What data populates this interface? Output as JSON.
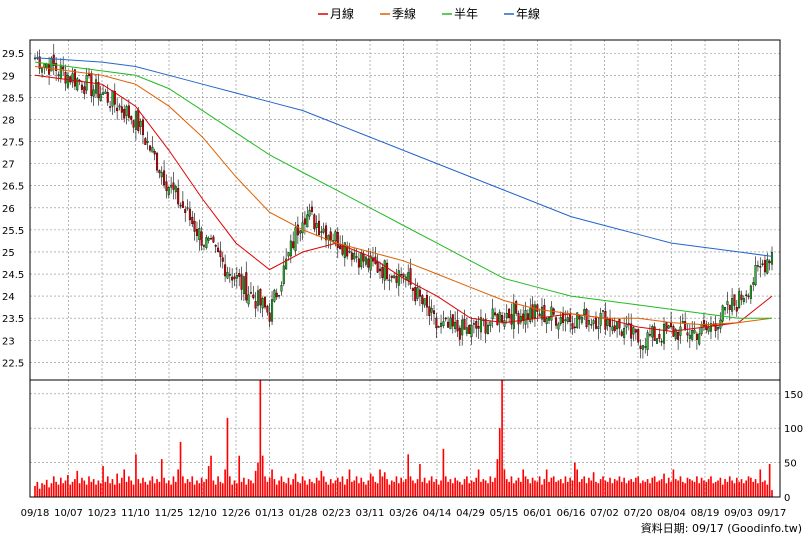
{
  "chart_data": {
    "type": "candlestick",
    "legend": [
      {
        "name": "月線",
        "color": "#e00000"
      },
      {
        "name": "季線",
        "color": "#e06000"
      },
      {
        "name": "半年",
        "color": "#22bb22"
      },
      {
        "name": "年線",
        "color": "#2266cc"
      }
    ],
    "colors": {
      "up": "#22bb22",
      "down": "#e00000",
      "volume": "#ff0000",
      "grid": "#888888"
    },
    "price_axis": {
      "min": 22.1,
      "max": 29.8,
      "ticks": [
        "22.5",
        "23",
        "23.5",
        "24",
        "24.5",
        "25",
        "25.5",
        "26",
        "26.5",
        "27",
        "27.5",
        "28",
        "28.5",
        "29",
        "29.5"
      ]
    },
    "volume_axis": {
      "min": 0,
      "max": 170,
      "ticks": [
        "0",
        "50",
        "100",
        "150"
      ]
    },
    "x_labels": [
      "09/18",
      "10/07",
      "10/23",
      "11/10",
      "11/25",
      "12/10",
      "12/26",
      "01/13",
      "01/28",
      "02/23",
      "03/11",
      "03/26",
      "04/14",
      "04/29",
      "05/15",
      "06/01",
      "06/16",
      "07/02",
      "07/20",
      "08/04",
      "08/19",
      "09/03",
      "09/17"
    ],
    "key_points": [
      {
        "date": "09/18",
        "close": 29.4
      },
      {
        "date": "10/07",
        "close": 29.0
      },
      {
        "date": "10/23",
        "close": 28.6
      },
      {
        "date": "11/10",
        "close": 28.0
      },
      {
        "date": "11/25",
        "close": 26.5
      },
      {
        "date": "12/10",
        "close": 25.3
      },
      {
        "date": "12/26",
        "close": 24.4
      },
      {
        "date": "01/13",
        "close": 23.6
      },
      {
        "date": "01/28",
        "close": 25.9
      },
      {
        "date": "02/23",
        "close": 25.3
      },
      {
        "date": "03/11",
        "close": 24.7
      },
      {
        "date": "03/26",
        "close": 24.5
      },
      {
        "date": "04/14",
        "close": 23.3
      },
      {
        "date": "04/29",
        "close": 23.2
      },
      {
        "date": "05/15",
        "close": 23.6
      },
      {
        "date": "06/01",
        "close": 23.6
      },
      {
        "date": "06/16",
        "close": 23.5
      },
      {
        "date": "07/02",
        "close": 23.5
      },
      {
        "date": "07/20",
        "close": 23.0
      },
      {
        "date": "08/04",
        "close": 23.2
      },
      {
        "date": "08/19",
        "close": 23.2
      },
      {
        "date": "09/03",
        "close": 23.9
      },
      {
        "date": "09/17",
        "close": 25.0
      }
    ],
    "moving_averages": {
      "月線": [
        29.0,
        28.9,
        28.8,
        28.3,
        27.3,
        26.2,
        25.2,
        24.6,
        25.0,
        25.2,
        24.9,
        24.4,
        24.0,
        23.5,
        23.4,
        23.5,
        23.6,
        23.5,
        23.3,
        23.2,
        23.3,
        23.4,
        24.0
      ],
      "季線": [
        29.2,
        29.1,
        29.0,
        28.8,
        28.3,
        27.6,
        26.7,
        25.9,
        25.5,
        25.2,
        25.0,
        24.8,
        24.5,
        24.2,
        23.9,
        23.7,
        23.6,
        23.5,
        23.5,
        23.4,
        23.35,
        23.4,
        23.5
      ],
      "半年": [
        29.3,
        29.2,
        29.1,
        29.0,
        28.7,
        28.2,
        27.7,
        27.2,
        26.8,
        26.4,
        26.0,
        25.6,
        25.2,
        24.8,
        24.4,
        24.2,
        24.0,
        23.9,
        23.8,
        23.7,
        23.6,
        23.5,
        23.5
      ],
      "年線": [
        29.4,
        29.35,
        29.3,
        29.2,
        29.0,
        28.8,
        28.6,
        28.4,
        28.2,
        27.9,
        27.6,
        27.3,
        27.0,
        26.7,
        26.4,
        26.1,
        25.8,
        25.6,
        25.4,
        25.2,
        25.1,
        25.0,
        24.9
      ]
    },
    "volume_peaks": [
      {
        "date": "01/13",
        "value": 170
      },
      {
        "date": "05/15",
        "value": 170
      },
      {
        "date": "12/26",
        "value": 115
      },
      {
        "date": "05/15",
        "value": 100
      }
    ],
    "volume_series": [
      16,
      22,
      12,
      20,
      18,
      25,
      14,
      20,
      30,
      22,
      18,
      28,
      20,
      24,
      32,
      18,
      22,
      26,
      38,
      20,
      28,
      24,
      18,
      30,
      22,
      26,
      18,
      24,
      20,
      45,
      22,
      30,
      20,
      26,
      18,
      34,
      20,
      28,
      40,
      22,
      30,
      24,
      18,
      62,
      26,
      20,
      28,
      22,
      18,
      24,
      30,
      20,
      26,
      22,
      55,
      28,
      20,
      24,
      18,
      30,
      22,
      40,
      80,
      30,
      20,
      26,
      22,
      30,
      18,
      24,
      20,
      28,
      22,
      26,
      45,
      60,
      24,
      18,
      30,
      22,
      20,
      40,
      115,
      30,
      18,
      24,
      20,
      60,
      22,
      28,
      18,
      26,
      24,
      20,
      38,
      50,
      170,
      60,
      30,
      22,
      28,
      40,
      26,
      18,
      24,
      30,
      22,
      20,
      28,
      18,
      26,
      34,
      22,
      20,
      30,
      24,
      18,
      26,
      22,
      20,
      28,
      24,
      38,
      30,
      22,
      18,
      26,
      20,
      24,
      28,
      22,
      30,
      18,
      26,
      40,
      22,
      24,
      30,
      20,
      28,
      22,
      18,
      24,
      34,
      30,
      22,
      20,
      40,
      30,
      36,
      26,
      18,
      24,
      22,
      30,
      20,
      28,
      22,
      26,
      62,
      30,
      24,
      20,
      26,
      48,
      22,
      28,
      20,
      24,
      30,
      22,
      26,
      18,
      24,
      70,
      30,
      22,
      26,
      20,
      28,
      24,
      22,
      18,
      26,
      30,
      20,
      24,
      22,
      28,
      40,
      22,
      26,
      24,
      20,
      30,
      22,
      28,
      55,
      100,
      170,
      40,
      26,
      22,
      30,
      20,
      24,
      28,
      22,
      40,
      30,
      26,
      20,
      28,
      24,
      22,
      30,
      18,
      26,
      40,
      22,
      28,
      30,
      22,
      24,
      26,
      20,
      30,
      22,
      28,
      24,
      50,
      40,
      22,
      26,
      30,
      20,
      28,
      24,
      36,
      22,
      20,
      26,
      30,
      24,
      22,
      28,
      20,
      26,
      24,
      30,
      22,
      28,
      20,
      24,
      26,
      22,
      28,
      30,
      20,
      24,
      22,
      26,
      20,
      28,
      30,
      22,
      24,
      26,
      34,
      20,
      28,
      22,
      40,
      26,
      24,
      30,
      22,
      20,
      28,
      26,
      24,
      22,
      30,
      20,
      28,
      24,
      22,
      26,
      30,
      20,
      22,
      24,
      28,
      18,
      26,
      22,
      30,
      24,
      20,
      28,
      22,
      26,
      20,
      24,
      30,
      28,
      22,
      26,
      20,
      40,
      22,
      24,
      18,
      48,
      10
    ]
  },
  "footer": {
    "text": "資料日期: 09/17  (Goodinfo.tw)"
  }
}
